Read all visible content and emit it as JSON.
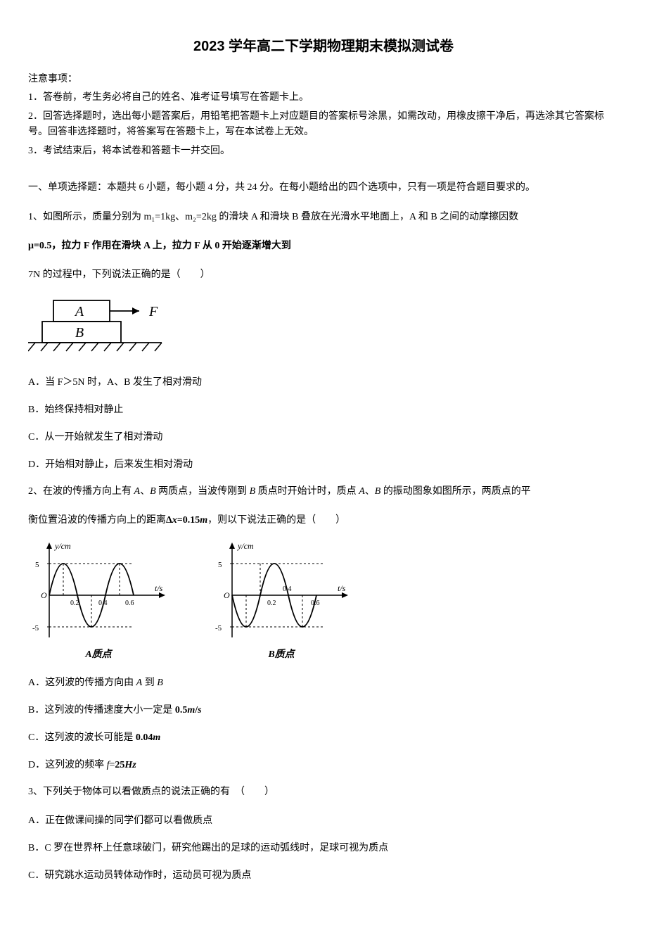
{
  "title": "2023 学年高二下学期物理期末模拟测试卷",
  "notice": {
    "header": "注意事项：",
    "items": [
      "1．答卷前，考生务必将自己的姓名、准考证号填写在答题卡上。",
      "2．回答选择题时，选出每小题答案后，用铅笔把答题卡上对应题目的答案标号涂黑，如需改动，用橡皮擦干净后，再选涂其它答案标号。回答非选择题时，将答案写在答题卡上，写在本试卷上无效。",
      "3．考试结束后，将本试卷和答题卡一并交回。"
    ]
  },
  "section": "一、单项选择题：本题共 6 小题，每小题 4 分，共 24 分。在每小题给出的四个选项中，只有一项是符合题目要求的。",
  "q1": {
    "stem1": "1、如图所示，质量分别为 m₁=1kg、m₂=2kg 的滑块 A 和滑块 B 叠放在光滑水平地面上，A 和 B 之间的动摩擦因数",
    "stem2": "μ=0.5，拉力 F 作用在滑块 A 上，拉力 F 从 0 开始逐渐增大到",
    "stem3": "7N 的过程中，下列说法正确的是（　　）",
    "optA": "A．当 F＞5N 时，A、B 发生了相对滑动",
    "optB": "B．始终保持相对静止",
    "optC": "C．从一开始就发生了相对滑动",
    "optD": "D．开始相对静止，后来发生相对滑动",
    "figure": {
      "labelA": "A",
      "labelB": "B",
      "labelF": "F",
      "stroke": "#000000",
      "fontsize_it": 20
    }
  },
  "q2": {
    "stem1_html": "2、在波的传播方向上有 <i>A</i>、<i>B</i> 两质点，当波传刚到 <i>B</i> 质点时开始计时，质点 <i>A</i>、<i>B</i> 的振动图象如图所示，两质点的平",
    "stem2_html": "衡位置沿波的传播方向上的距离<b>Δ<i>x</i>=0.15<i>m</i></b>，则以下说法正确的是（　　）",
    "captionA": "A质点",
    "captionB": "B质点",
    "optA_html": "A．这列波的传播方向由 <i>A</i> 到 <i>B</i>",
    "optB_html": "B．这列波的传播速度大小一定是 <b>0.5<i>m</i>/<i>s</i></b>",
    "optC_html": "C．这列波的波长可能是 <b>0.04<i>m</i></b>",
    "optD_html": "D．这列波的频率 <i>f</i>=<b>25<i>Hz</i></b>",
    "chart": {
      "type": "line",
      "ylabel": "y/cm",
      "xlabel": "t/s",
      "xlim": [
        0,
        0.7
      ],
      "ylim": [
        -6,
        6
      ],
      "yticks": [
        -5,
        5
      ],
      "xticks_A": [
        0.2,
        0.4,
        0.6
      ],
      "xticks_B": [
        0.2,
        0.4,
        0.6
      ],
      "amplitude": 5,
      "period": 0.4,
      "phase_A_start_dir": "up_from_zero_at_t0",
      "phase_B": "negative_cosine_start_zero",
      "stroke": "#000000",
      "grid_dash": "3,3",
      "line_width": 1.8,
      "label_fontsize": 12,
      "tick_fontsize": 10,
      "background_color": "#ffffff"
    }
  },
  "q3": {
    "stem": "3、下列关于物体可以看做质点的说法正确的有　（　　）",
    "optA": "A．正在做课间操的同学们都可以看做质点",
    "optB": "B．C 罗在世界杯上任意球破门，研究他踢出的足球的运动弧线时，足球可视为质点",
    "optC": "C．研究跳水运动员转体动作时，运动员可视为质点"
  }
}
